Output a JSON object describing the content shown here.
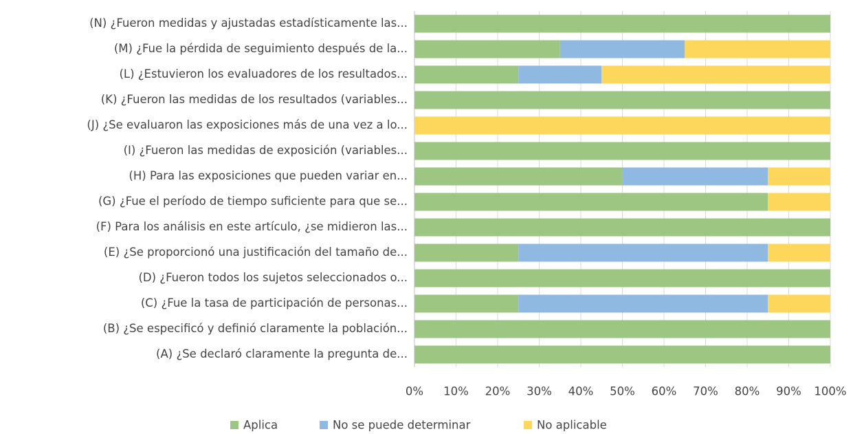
{
  "chart_data": {
    "type": "stacked-bar-horizontal",
    "categories": [
      "(A) ¿Se declaró claramente la pregunta de...",
      "(B) ¿Se especificó y definió claramente la población...",
      "(C) ¿Fue la tasa de participación de personas...",
      "(D) ¿Fueron todos los sujetos seleccionados o...",
      "(E) ¿Se proporcionó una justificación del tamaño de...",
      "(F) Para los análisis en este artículo, ¿se midieron las...",
      "(G) ¿Fue el período de tiempo suficiente para que se...",
      "(H) Para las exposiciones que pueden variar en...",
      "(I) ¿Fueron las medidas de exposición (variables...",
      "(J) ¿Se evaluaron las exposiciones más de una vez a lo...",
      "(K) ¿Fueron las medidas de los resultados (variables...",
      "(L) ¿Estuvieron los evaluadores de los resultados...",
      "(M) ¿Fue la pérdida de seguimiento después de la...",
      "(N) ¿Fueron medidas y ajustadas estadísticamente las..."
    ],
    "series": [
      {
        "name": "Aplica",
        "color": "#9cc682",
        "values": [
          100,
          100,
          25,
          100,
          25,
          100,
          85,
          50,
          100,
          0,
          100,
          25,
          35,
          100
        ]
      },
      {
        "name": "No se puede determinar",
        "color": "#90b9e1",
        "values": [
          0,
          0,
          60,
          0,
          60,
          0,
          0,
          35,
          0,
          0,
          0,
          20,
          30,
          0
        ]
      },
      {
        "name": "No aplicable",
        "color": "#fdd75c",
        "values": [
          0,
          0,
          15,
          0,
          15,
          0,
          15,
          15,
          0,
          100,
          0,
          55,
          35,
          0
        ]
      }
    ],
    "xlim": [
      0,
      100
    ],
    "xticks": [
      {
        "value": 0,
        "label": "0%"
      },
      {
        "value": 10,
        "label": "10%"
      },
      {
        "value": 20,
        "label": "20%"
      },
      {
        "value": 30,
        "label": "30%"
      },
      {
        "value": 40,
        "label": "40%"
      },
      {
        "value": 50,
        "label": "50%"
      },
      {
        "value": 60,
        "label": "60%"
      },
      {
        "value": 70,
        "label": "70%"
      },
      {
        "value": 80,
        "label": "80%"
      },
      {
        "value": 90,
        "label": "90%"
      },
      {
        "value": 100,
        "label": "100%"
      }
    ],
    "grid": true,
    "legend": "bottom"
  }
}
